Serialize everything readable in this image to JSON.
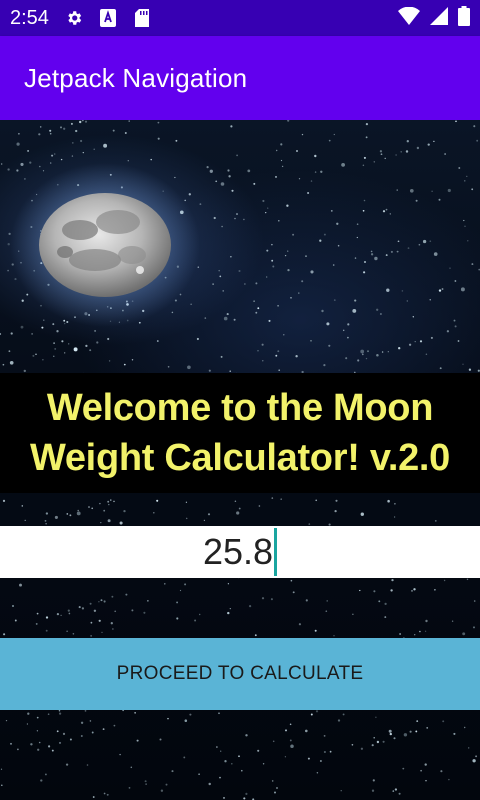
{
  "status_bar": {
    "time": "2:54",
    "icons": [
      "settings-icon",
      "keyboard-a-icon",
      "sd-card-icon",
      "wifi-icon",
      "signal-icon",
      "battery-icon"
    ]
  },
  "app_bar": {
    "title": "Jetpack Navigation",
    "color": "#6200ee",
    "status_color": "#3700b3"
  },
  "main": {
    "headline_line1": "Welcome to the Moon",
    "headline_line2": "Weight Calculator! v.2.0",
    "headline_color": "#f2f26a",
    "weight_input": {
      "value": "25.8"
    },
    "proceed_button": {
      "label": "PROCEED TO CALCULATE",
      "color": "#5ab4d6"
    }
  }
}
